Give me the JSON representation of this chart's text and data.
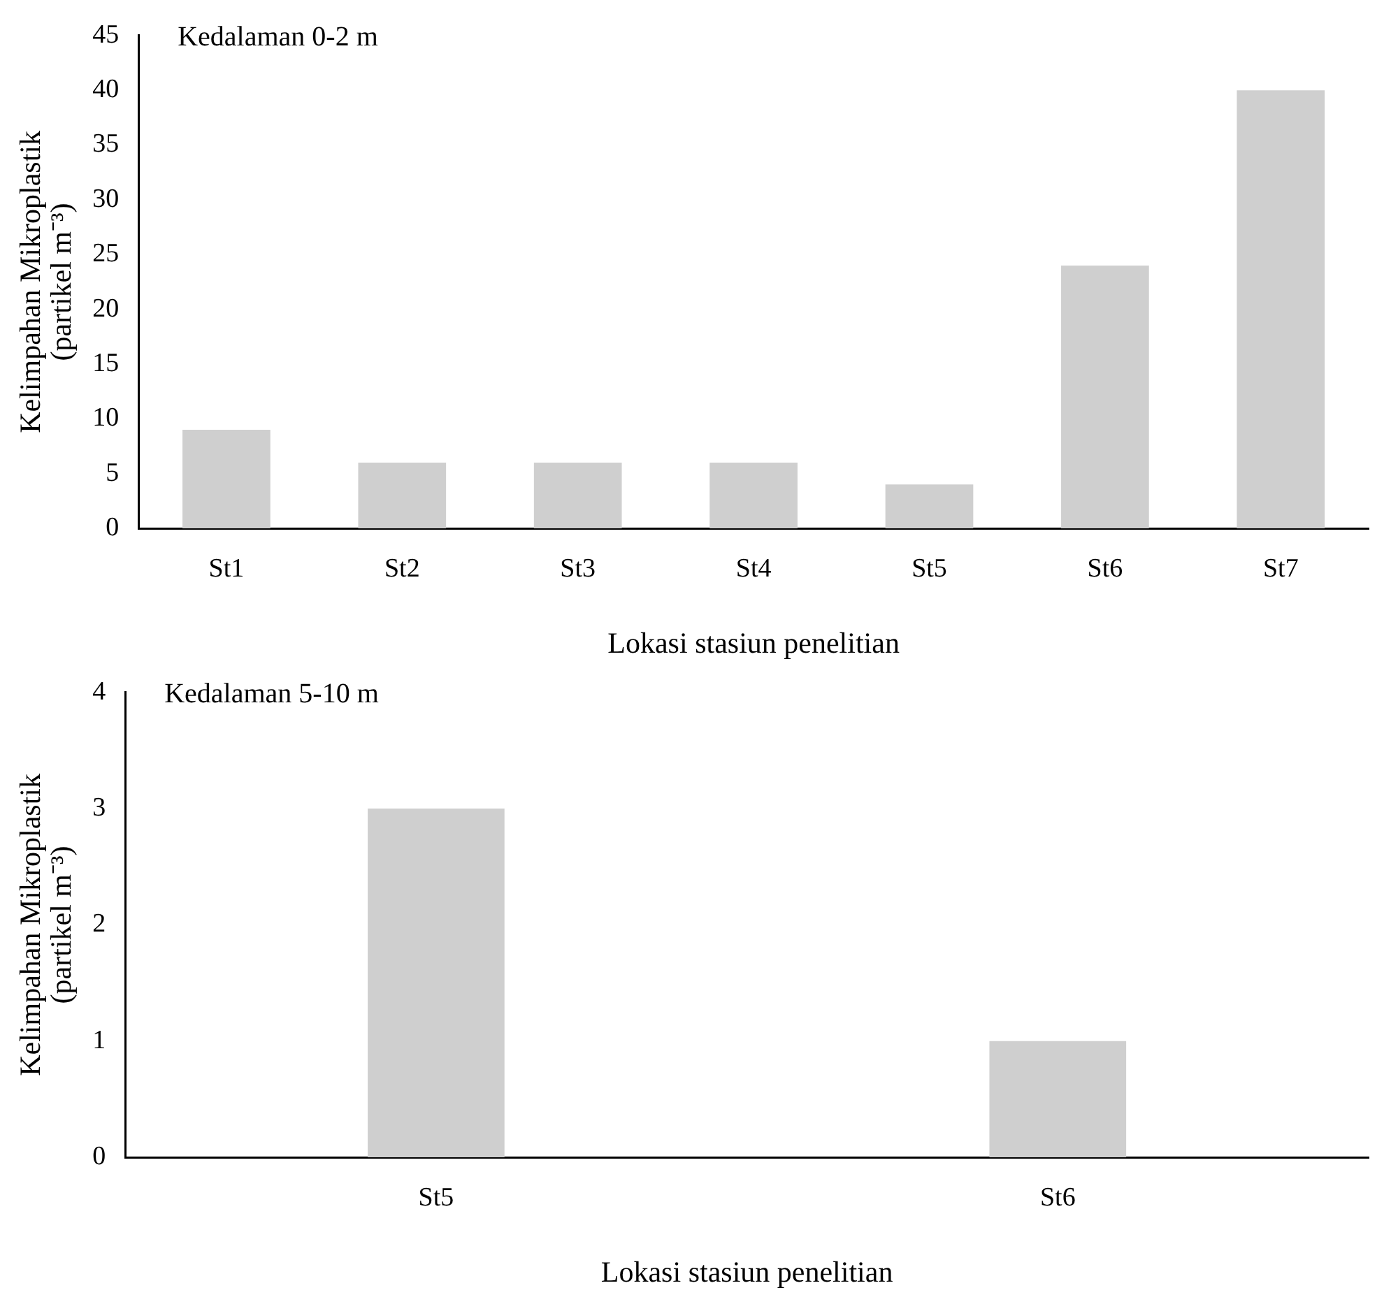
{
  "chart_data": [
    {
      "type": "bar",
      "title": "Kedalaman 0-2 m",
      "xlabel": "Lokasi stasiun penelitian",
      "ylabel": "Kelimpahan Mikroplastik\n(partikel m⁻³)",
      "categories": [
        "St1",
        "St2",
        "St3",
        "St4",
        "St5",
        "St6",
        "St7"
      ],
      "values": [
        9,
        6,
        6,
        6,
        4,
        24,
        40
      ],
      "color": "#cfcfcf",
      "ylim": [
        0,
        45
      ],
      "yticks": [
        0,
        5,
        10,
        15,
        20,
        25,
        30,
        35,
        40,
        45
      ],
      "grid": false,
      "legend": false
    },
    {
      "type": "bar",
      "title": "Kedalaman 5-10 m",
      "xlabel": "Lokasi stasiun penelitian",
      "ylabel": "Kelimpahan Mikroplastik\n(partikel m⁻³)",
      "categories": [
        "St5",
        "St6"
      ],
      "values": [
        3,
        1
      ],
      "color": "#cfcfcf",
      "ylim": [
        0,
        4
      ],
      "yticks": [
        0,
        1,
        2,
        3,
        4
      ],
      "grid": false,
      "legend": false
    }
  ]
}
